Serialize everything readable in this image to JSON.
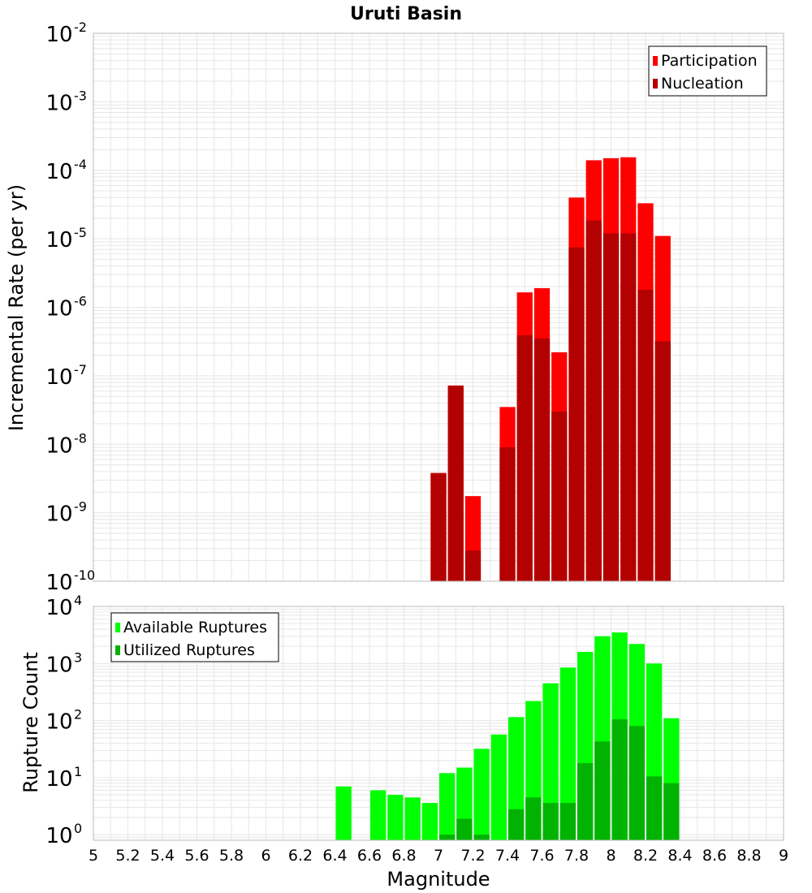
{
  "chart_title": "Uruti Basin",
  "x_axis_label": "Magnitude",
  "colors": {
    "participation": "#ff0000",
    "nucleation": "#b30000",
    "available": "#00ff00",
    "utilized": "#00b300",
    "grid": "#e6e6e6",
    "frame": "#bbbbbb"
  },
  "chart_data": [
    {
      "type": "bar",
      "name": "rate-panel",
      "ylabel": "Incremental Rate (per yr)",
      "yscale": "log",
      "ylim": [
        1e-10,
        0.01
      ],
      "xlim": [
        5,
        9
      ],
      "y_tick_exponents": [
        "-10",
        "-9",
        "-8",
        "-7",
        "-6",
        "-5",
        "-4",
        "-3",
        "-2"
      ],
      "legend": {
        "placement": "top-right",
        "entries": [
          "Participation",
          "Nucleation"
        ]
      },
      "x": [
        7.0,
        7.1,
        7.2,
        7.4,
        7.5,
        7.6,
        7.7,
        7.8,
        7.9,
        8.0,
        8.1,
        8.2,
        8.3
      ],
      "series": [
        {
          "name": "Participation",
          "values": [
            3.8e-09,
            7.2e-08,
            1.75e-09,
            3.5e-08,
            1.65e-06,
            1.9e-06,
            2.2e-07,
            4e-05,
            0.00014,
            0.00015,
            0.000155,
            3.3e-05,
            1.1e-05
          ]
        },
        {
          "name": "Nucleation",
          "values": [
            3.8e-09,
            7.2e-08,
            2.8e-10,
            9e-09,
            3.9e-07,
            3.5e-07,
            3e-08,
            7.5e-06,
            1.85e-05,
            1.2e-05,
            1.2e-05,
            1.8e-06,
            3.2e-07
          ]
        }
      ]
    },
    {
      "type": "bar",
      "name": "count-panel",
      "ylabel": "Rupture Count",
      "yscale": "log",
      "ylim": [
        0.8,
        10000
      ],
      "xlim": [
        5,
        9
      ],
      "y_tick_exponents": [
        "0",
        "1",
        "2",
        "3",
        "4"
      ],
      "legend": {
        "placement": "top-left",
        "entries": [
          "Available Ruptures",
          "Utilized Ruptures"
        ]
      },
      "x_ticks": [
        "5",
        "5.2",
        "5.4",
        "5.6",
        "5.8",
        "6",
        "6.2",
        "6.4",
        "6.6",
        "6.8",
        "7",
        "7.2",
        "7.4",
        "7.6",
        "7.8",
        "8",
        "8.2",
        "8.4",
        "8.6",
        "8.8",
        "9"
      ],
      "x": [
        6.45,
        6.65,
        6.75,
        6.85,
        6.95,
        7.05,
        7.15,
        7.25,
        7.35,
        7.45,
        7.55,
        7.65,
        7.75,
        7.85,
        7.95,
        8.05,
        8.15,
        8.25,
        8.35
      ],
      "series": [
        {
          "name": "Available Ruptures",
          "values": [
            7,
            6,
            5,
            4.5,
            3.6,
            12,
            15,
            32,
            57,
            115,
            220,
            450,
            850,
            1600,
            3000,
            3500,
            2200,
            1000,
            110
          ]
        },
        {
          "name": "Utilized Ruptures",
          "values": [
            0,
            0,
            0,
            0,
            0,
            1,
            1.9,
            1,
            0,
            2.8,
            4.5,
            3.6,
            3.6,
            18,
            43,
            105,
            80,
            10.5,
            8
          ]
        }
      ]
    }
  ]
}
